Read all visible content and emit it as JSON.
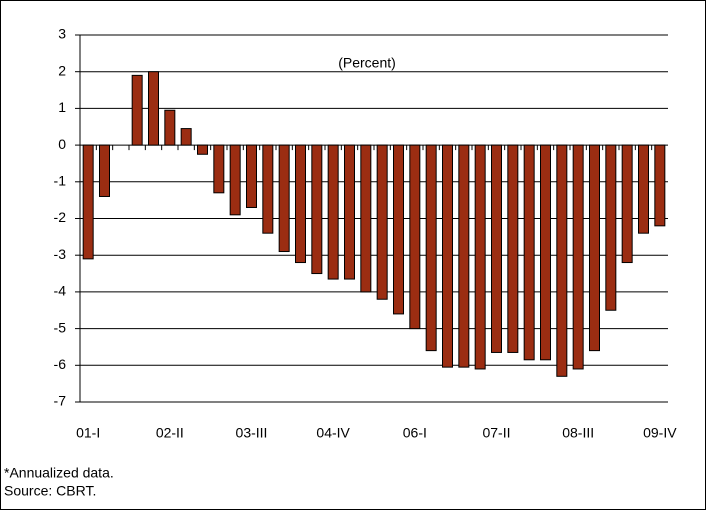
{
  "chart_data": {
    "type": "bar",
    "annotation": "(Percent)",
    "categories": [
      "01-I",
      null,
      null,
      null,
      null,
      "02-II",
      null,
      null,
      null,
      null,
      "03-III",
      null,
      null,
      null,
      null,
      "04-IV",
      null,
      null,
      null,
      null,
      "06-I",
      null,
      null,
      null,
      null,
      "07-II",
      null,
      null,
      null,
      null,
      "08-III",
      null,
      null,
      null,
      null,
      "09-IV"
    ],
    "values": [
      -3.1,
      -1.4,
      null,
      1.9,
      2.0,
      0.95,
      0.45,
      -0.25,
      -1.3,
      -1.9,
      -1.7,
      -2.4,
      -2.9,
      -3.2,
      -3.5,
      -3.65,
      -3.65,
      -4.0,
      -4.2,
      -4.6,
      -5.0,
      -5.6,
      -6.05,
      -6.05,
      -6.1,
      -5.65,
      -5.65,
      -5.85,
      -5.85,
      -6.3,
      -6.1,
      -5.6,
      -4.5,
      -3.2,
      -2.4,
      -2.2
    ],
    "color": "#9b2d12",
    "ylim": [
      -7,
      3
    ],
    "yticks": [
      -7,
      -6,
      -5,
      -4,
      -3,
      -2,
      -1,
      0,
      1,
      2,
      3
    ],
    "grid": true,
    "notes": [
      "*Annualized data.",
      "Source: CBRT."
    ]
  }
}
